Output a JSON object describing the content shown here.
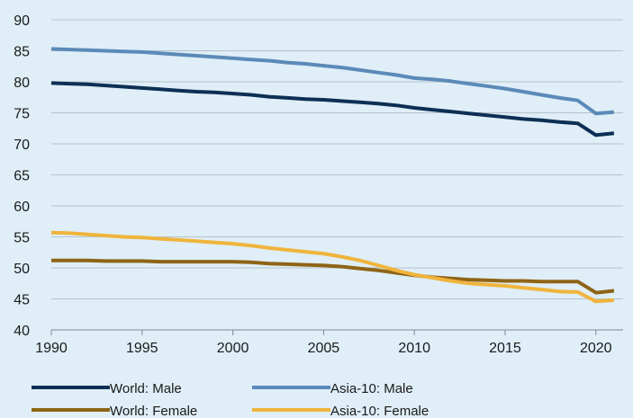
{
  "chart_data": {
    "type": "line",
    "title": "",
    "xlabel": "",
    "ylabel": "",
    "xlim": [
      1990,
      2021.5
    ],
    "ylim": [
      40,
      90
    ],
    "xticks": [
      1990,
      1995,
      2000,
      2005,
      2010,
      2015,
      2020
    ],
    "yticks": [
      40,
      45,
      50,
      55,
      60,
      65,
      70,
      75,
      80,
      85,
      90
    ],
    "x": [
      1990,
      1991,
      1992,
      1993,
      1994,
      1995,
      1996,
      1997,
      1998,
      1999,
      2000,
      2001,
      2002,
      2003,
      2004,
      2005,
      2006,
      2007,
      2008,
      2009,
      2010,
      2011,
      2012,
      2013,
      2014,
      2015,
      2016,
      2017,
      2018,
      2019,
      2020,
      2021
    ],
    "grid": "horizontal",
    "legend": "bottom",
    "series": [
      {
        "name": "World: Male",
        "color": "#0d2f55",
        "values": [
          79.8,
          79.7,
          79.6,
          79.4,
          79.2,
          79.0,
          78.8,
          78.6,
          78.4,
          78.3,
          78.1,
          77.9,
          77.6,
          77.4,
          77.2,
          77.1,
          76.9,
          76.7,
          76.5,
          76.2,
          75.8,
          75.5,
          75.2,
          74.9,
          74.6,
          74.3,
          74.0,
          73.8,
          73.5,
          73.3,
          71.4,
          71.7
        ]
      },
      {
        "name": "Asia-10: Male",
        "color": "#5b8ab8",
        "values": [
          85.3,
          85.2,
          85.1,
          85.0,
          84.9,
          84.8,
          84.6,
          84.4,
          84.2,
          84.0,
          83.8,
          83.6,
          83.4,
          83.1,
          82.9,
          82.6,
          82.3,
          81.9,
          81.5,
          81.1,
          80.6,
          80.4,
          80.1,
          79.7,
          79.3,
          78.9,
          78.4,
          77.9,
          77.4,
          77.0,
          74.9,
          75.1
        ]
      },
      {
        "name": "World: Female",
        "color": "#8f6415",
        "values": [
          51.2,
          51.2,
          51.2,
          51.1,
          51.1,
          51.1,
          51.0,
          51.0,
          51.0,
          51.0,
          51.0,
          50.9,
          50.7,
          50.6,
          50.5,
          50.4,
          50.2,
          49.9,
          49.6,
          49.2,
          48.8,
          48.5,
          48.3,
          48.1,
          48.0,
          47.9,
          47.9,
          47.8,
          47.8,
          47.8,
          46.0,
          46.3
        ]
      },
      {
        "name": "Asia-10: Female",
        "color": "#f0b43c",
        "values": [
          55.7,
          55.6,
          55.4,
          55.2,
          55.0,
          54.9,
          54.7,
          54.5,
          54.3,
          54.1,
          53.9,
          53.6,
          53.2,
          52.9,
          52.6,
          52.3,
          51.8,
          51.2,
          50.4,
          49.6,
          48.9,
          48.4,
          47.9,
          47.5,
          47.3,
          47.1,
          46.8,
          46.5,
          46.2,
          46.1,
          44.6,
          44.8
        ]
      }
    ]
  }
}
